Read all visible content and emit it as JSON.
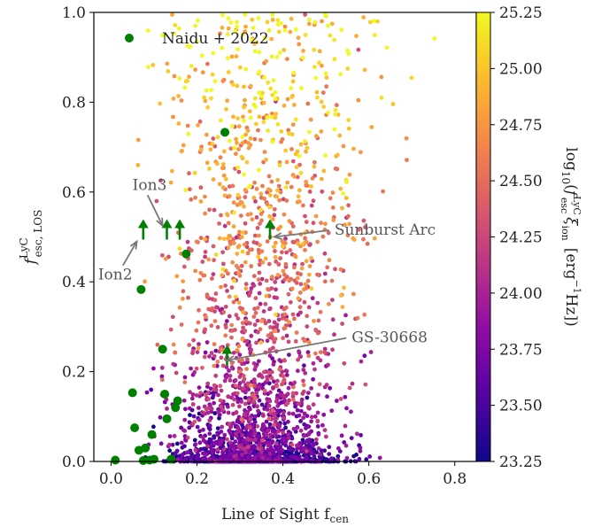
{
  "chart_data": {
    "type": "scatter",
    "title": "",
    "xlabel": "Line of Sight f",
    "xlabel_sub": "cen",
    "ylabel": "f",
    "ylabel_sup": "LyC",
    "ylabel_sub": "esc, LOS",
    "xlim": [
      -0.04,
      0.85
    ],
    "ylim": [
      0.0,
      1.0
    ],
    "xticks": [
      0.0,
      0.2,
      0.4,
      0.6,
      0.8
    ],
    "xtick_labels": [
      "0.0",
      "0.2",
      "0.4",
      "0.6",
      "0.8"
    ],
    "yticks": [
      0.0,
      0.2,
      0.4,
      0.6,
      0.8,
      1.0
    ],
    "ytick_labels": [
      "0.0",
      "0.2",
      "0.4",
      "0.6",
      "0.8",
      "1.0"
    ],
    "grid": false,
    "colorbar": {
      "label": "log10(f_esc^LyC ξ_ion [erg^-1 Hz])",
      "label_prefix": "log",
      "label_log_base": "10",
      "label_open": "(",
      "label_f": "f",
      "label_f_sup": "LyC",
      "label_f_sub": "esc",
      "label_xi": "ξ",
      "label_xi_sub": "ion",
      "label_units": "[erg",
      "label_units_exp": "−1",
      "label_units_tail": "Hz])",
      "range": [
        23.25,
        25.25
      ],
      "ticks": [
        23.25,
        23.5,
        23.75,
        24.0,
        24.25,
        24.5,
        24.75,
        25.0,
        25.25
      ],
      "tick_labels": [
        "23.25",
        "23.50",
        "23.75",
        "24.00",
        "24.25",
        "24.50",
        "24.75",
        "25.00",
        "25.25"
      ],
      "colormap": "plasma"
    },
    "series": [
      {
        "name": "Naidu + 2022",
        "color": "#008000",
        "marker": "circle",
        "points": [
          {
            "x": 0.01,
            "y": 0.003
          },
          {
            "x": 0.05,
            "y": 0.153
          },
          {
            "x": 0.055,
            "y": 0.075
          },
          {
            "x": 0.065,
            "y": 0.025
          },
          {
            "x": 0.07,
            "y": 0.383
          },
          {
            "x": 0.075,
            "y": 0.002
          },
          {
            "x": 0.08,
            "y": 0.03
          },
          {
            "x": 0.09,
            "y": 0.003
          },
          {
            "x": 0.095,
            "y": 0.06
          },
          {
            "x": 0.1,
            "y": 0.005
          },
          {
            "x": 0.12,
            "y": 0.25
          },
          {
            "x": 0.125,
            "y": 0.15
          },
          {
            "x": 0.13,
            "y": 0.095
          },
          {
            "x": 0.14,
            "y": 0.005
          },
          {
            "x": 0.15,
            "y": 0.12
          },
          {
            "x": 0.155,
            "y": 0.135
          },
          {
            "x": 0.175,
            "y": 0.462
          },
          {
            "x": 0.265,
            "y": 0.733
          }
        ]
      },
      {
        "name": "lower limits",
        "color": "#008000",
        "marker": "up-arrow",
        "points": [
          {
            "x": 0.075,
            "y": 0.5,
            "label": "Ion2"
          },
          {
            "x": 0.13,
            "y": 0.5,
            "label": "Ion3"
          },
          {
            "x": 0.16,
            "y": 0.5
          },
          {
            "x": 0.37,
            "y": 0.5,
            "label": "Sunburst Arc"
          },
          {
            "x": 0.27,
            "y": 0.22,
            "label": "GS-30668"
          }
        ]
      }
    ],
    "background_population": {
      "description": "several thousand colored scatter points, densest near x≈0.32, y<0.2; colored by colorbar value",
      "x_center": 0.33,
      "y_max": 1.0
    },
    "annotations": [
      {
        "text": "Ion3",
        "x": 0.05,
        "y": 0.605,
        "arrow_to": [
          0.12,
          0.525
        ]
      },
      {
        "text": "Ion2",
        "x": -0.03,
        "y": 0.405,
        "arrow_to": [
          0.06,
          0.49
        ]
      },
      {
        "text": "Sunburst Arc",
        "x": 0.52,
        "y": 0.505,
        "arrow_to": [
          0.38,
          0.5
        ]
      },
      {
        "text": "GS-30668",
        "x": 0.56,
        "y": 0.265,
        "arrow_to": [
          0.27,
          0.225
        ]
      }
    ],
    "legend": {
      "position": "top-left",
      "label": "Naidu + 2022"
    }
  }
}
